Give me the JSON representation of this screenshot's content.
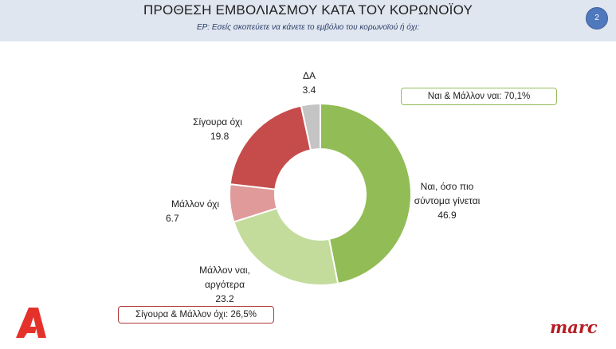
{
  "header": {
    "title": "ΠΡΟΘΕΣΗ ΕΜΒΟΛΙΑΣΜΟΥ ΚΑΤΑ ΤΟΥ ΚΟΡΩΝΟΪΟΥ",
    "subtitle": "ΕΡ: Εσείς σκοπεύετε να κάνετε το εμβόλιο του κορωνοϊού ή όχι:",
    "page_number": "2"
  },
  "chart_data": {
    "type": "pie",
    "variant": "donut",
    "title": "ΠΡΟΘΕΣΗ ΕΜΒΟΛΙΑΣΜΟΥ ΚΑΤΑ ΤΟΥ ΚΟΡΩΝΟΪΟΥ",
    "slices": [
      {
        "label_lines": [
          "Ναι, όσο πιο",
          "σύντομα γίνεται"
        ],
        "value": 46.9,
        "value_text": "46.9",
        "color": "#92bc55"
      },
      {
        "label_lines": [
          "Μάλλον ναι,",
          "αργότερα"
        ],
        "value": 23.2,
        "value_text": "23.2",
        "color": "#c3dc9c"
      },
      {
        "label_lines": [
          "Μάλλον όχι"
        ],
        "value": 6.7,
        "value_text": "6.7",
        "color": "#e09a9a"
      },
      {
        "label_lines": [
          "Σίγουρα όχι"
        ],
        "value": 19.8,
        "value_text": "19.8",
        "color": "#c64c4c"
      },
      {
        "label_lines": [
          "ΔΑ"
        ],
        "value": 3.4,
        "value_text": "3.4",
        "color": "#c4c4c4"
      }
    ],
    "annotations": [
      {
        "text": "Ναι & Μάλλον ναι: 70,1%",
        "color": "#93bb5a"
      },
      {
        "text": "Σίγουρα & Μάλλον όχι: 26,5%",
        "color": "#b23a3a"
      }
    ]
  },
  "branding": {
    "left_logo": "alpha-tv-logo",
    "right_logo_text": "marc"
  }
}
